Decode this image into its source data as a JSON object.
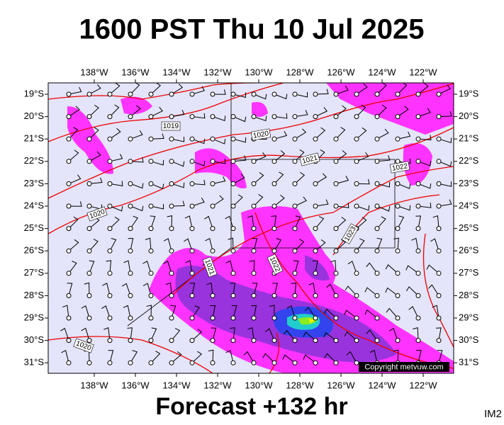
{
  "header": {
    "title": "1600 PST Thu 10 Jul 2025"
  },
  "footer": {
    "forecast": "Forecast +132 hr",
    "image_id": "IM2"
  },
  "map": {
    "copyright": "Copyright metvuw.com",
    "lon_labels": [
      "138°W",
      "136°W",
      "134°W",
      "132°W",
      "130°W",
      "128°W",
      "126°W",
      "124°W",
      "122°W"
    ],
    "lat_labels": [
      "19°S",
      "20°S",
      "21°S",
      "22°S",
      "23°S",
      "24°S",
      "25°S",
      "26°S",
      "27°S",
      "28°S",
      "29°S",
      "30°S",
      "31°S"
    ],
    "isobar_labels": [
      "1019",
      "1020",
      "1021",
      "1022",
      "1020",
      "1023",
      "1021",
      "1022",
      "1020"
    ]
  }
}
